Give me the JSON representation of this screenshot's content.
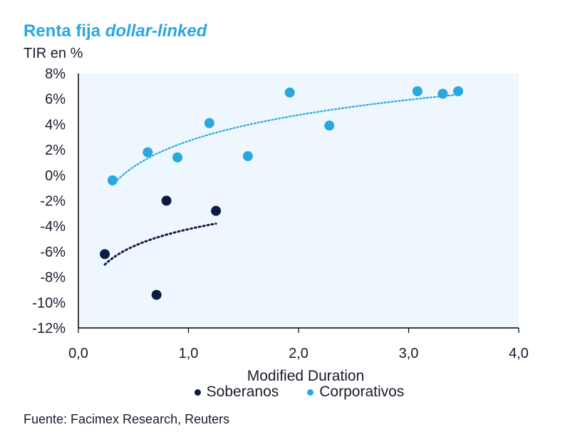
{
  "header": {
    "title_main": "Renta fija ",
    "title_italic": "dollar-linked",
    "y_unit_label": "TIR en %"
  },
  "source": "Fuente: Facimex Research, Reuters",
  "colors": {
    "plot_background": "#eef7fd",
    "soberanos": "#0d1a45",
    "corporativos": "#29a8e0",
    "title": "#29a8e0"
  },
  "chart_data": {
    "type": "scatter",
    "title": "Renta fija dollar-linked",
    "xlabel": "Modified Duration",
    "ylabel": "TIR en %",
    "xlim": [
      0,
      4
    ],
    "ylim": [
      -12,
      8
    ],
    "x_ticks": [
      "0,0",
      "1,0",
      "2,0",
      "3,0",
      "4,0"
    ],
    "x_tick_values": [
      0,
      1,
      2,
      3,
      4
    ],
    "y_ticks": [
      "8%",
      "6%",
      "4%",
      "2%",
      "0%",
      "-2%",
      "-4%",
      "-6%",
      "-8%",
      "-10%",
      "-12%"
    ],
    "y_tick_values": [
      8,
      6,
      4,
      2,
      0,
      -2,
      -4,
      -6,
      -8,
      -10,
      -12
    ],
    "grid": false,
    "legend_position": "bottom",
    "series": [
      {
        "name": "Soberanos",
        "color": "#0d1a45",
        "points": [
          {
            "x": 0.24,
            "y": -6.2
          },
          {
            "x": 0.71,
            "y": -9.4
          },
          {
            "x": 0.8,
            "y": -2.0
          },
          {
            "x": 1.25,
            "y": -2.8
          }
        ],
        "trendline": "logarithmic"
      },
      {
        "name": "Corporativos",
        "color": "#29a8e0",
        "points": [
          {
            "x": 0.31,
            "y": -0.4
          },
          {
            "x": 0.63,
            "y": 1.8
          },
          {
            "x": 0.9,
            "y": 1.4
          },
          {
            "x": 1.19,
            "y": 4.1
          },
          {
            "x": 1.54,
            "y": 1.5
          },
          {
            "x": 1.92,
            "y": 6.5
          },
          {
            "x": 2.28,
            "y": 3.9
          },
          {
            "x": 3.08,
            "y": 6.6
          },
          {
            "x": 3.31,
            "y": 6.4
          },
          {
            "x": 3.45,
            "y": 6.6
          }
        ],
        "trendline": "logarithmic"
      }
    ]
  }
}
